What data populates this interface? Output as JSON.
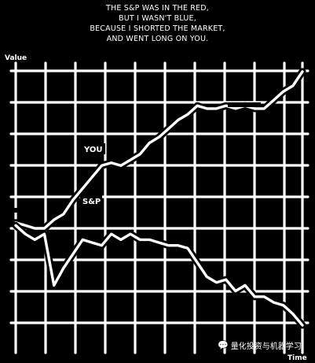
{
  "caption": [
    "THE S&P WAS IN THE RED,",
    "BUT I WASN'T BLUE,",
    "BECAUSE I SHORTED THE MARKET,",
    "AND WENT LONG ON YOU."
  ],
  "watermark": {
    "text": "量化投资与机器学习",
    "icon": "wechat-icon"
  },
  "colors": {
    "background": "#000000",
    "foreground": "#ffffff"
  },
  "chart_data": {
    "type": "line",
    "ylabel": "Value",
    "xlabel": "Time",
    "grid": true,
    "xlim": [
      0,
      30
    ],
    "ylim": [
      0,
      100
    ],
    "series": [
      {
        "name": "YOU",
        "x": [
          0,
          1,
          2,
          3,
          4,
          5,
          6,
          7,
          8,
          9,
          10,
          11,
          12,
          13,
          14,
          15,
          16,
          17,
          18,
          19,
          20,
          21,
          22,
          23,
          24,
          25,
          26,
          27,
          28,
          29,
          30
        ],
        "values": [
          44,
          43,
          42,
          42,
          45,
          47,
          52,
          56,
          60,
          64,
          65,
          64,
          66,
          68,
          72,
          74,
          77,
          80,
          82,
          85,
          84,
          84,
          85,
          84,
          85,
          84,
          84,
          87,
          90,
          92,
          97
        ]
      },
      {
        "name": "S&P",
        "x": [
          0,
          1,
          2,
          3,
          4,
          5,
          6,
          7,
          8,
          9,
          10,
          11,
          12,
          13,
          14,
          15,
          16,
          17,
          18,
          19,
          20,
          21,
          22,
          23,
          24,
          25,
          26,
          27,
          28,
          29,
          30
        ],
        "values": [
          43,
          40,
          38,
          40,
          22,
          28,
          33,
          38,
          37,
          36,
          40,
          38,
          40,
          38,
          38,
          37,
          36,
          36,
          35,
          30,
          25,
          23,
          24,
          20,
          22,
          18,
          18,
          16,
          15,
          12,
          8
        ]
      }
    ],
    "annotations": [
      "YOU",
      "S&P"
    ]
  }
}
